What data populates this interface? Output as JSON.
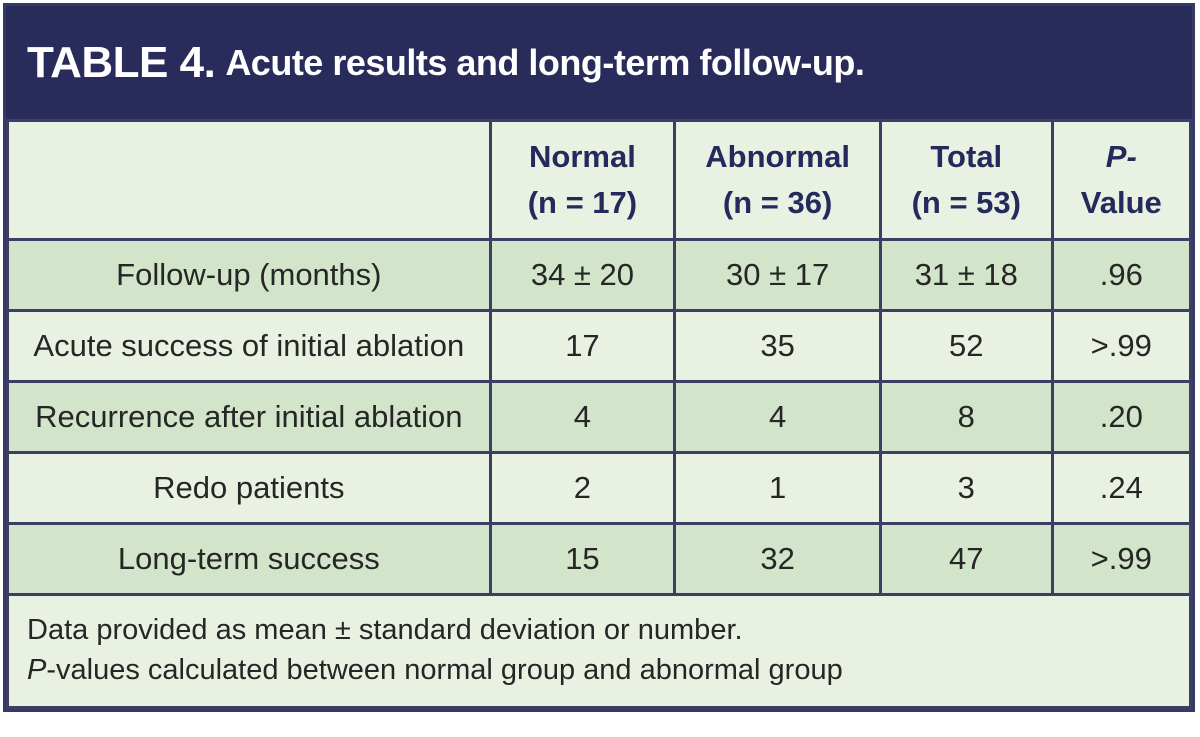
{
  "title": {
    "label": "TABLE 4.",
    "text": "Acute results and long-term follow-up."
  },
  "table": {
    "columns": [
      {
        "line1": "Normal",
        "line2": "(n = 17)"
      },
      {
        "line1": "Abnormal",
        "line2": "(n = 36)"
      },
      {
        "line1": "Total",
        "line2": "(n = 53)"
      },
      {
        "line1": "P-",
        "line2": "Value"
      }
    ],
    "rows": [
      {
        "label": "Follow-up (months)",
        "values": [
          "34 ± 20",
          "30 ± 17",
          "31 ± 18",
          ".96"
        ]
      },
      {
        "label": "Acute success of initial ablation",
        "values": [
          "17",
          "35",
          "52",
          ">.99"
        ]
      },
      {
        "label": "Recurrence after initial ablation",
        "values": [
          "4",
          "4",
          "8",
          ".20"
        ]
      },
      {
        "label": "Redo patients",
        "values": [
          "2",
          "1",
          "3",
          ".24"
        ]
      },
      {
        "label": "Long-term success",
        "values": [
          "15",
          "32",
          "47",
          ">.99"
        ]
      }
    ]
  },
  "footnote": {
    "line1": "Data provided as mean ± standard deviation or number.",
    "line2_italic": "P",
    "line2_rest": "-values calculated between normal group and abnormal group"
  },
  "colors": {
    "header_navy": "#292b5a",
    "border_navy": "#3c3f63",
    "row_dark_green": "#d2e4ca",
    "row_light_green": "#e9f2e2",
    "header_text_navy": "#242a5c",
    "body_text": "#262626"
  }
}
